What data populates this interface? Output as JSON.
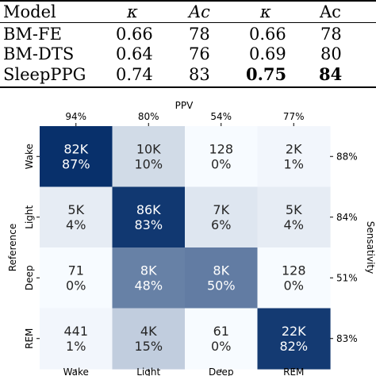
{
  "table": {
    "header": [
      "Model",
      "κ",
      "Ac",
      "κ",
      "Ac"
    ],
    "rows": [
      {
        "model": "BM-FE",
        "k1": "0.66",
        "ac1": "78",
        "k2": "0.66",
        "ac2": "78"
      },
      {
        "model": "BM-DTS",
        "k1": "0.64",
        "ac1": "76",
        "k2": "0.69",
        "ac2": "80"
      },
      {
        "model": "SleepPPG",
        "k1": "0.74",
        "ac1": "83",
        "k2": "0.75",
        "ac2": "84"
      }
    ]
  },
  "chart_data": {
    "type": "heatmap",
    "title": "",
    "top_axis_label": "PPV",
    "ylabel": "Reference",
    "right_axis_label": "Sensativity",
    "x_categories": [
      "Wake",
      "Light",
      "Deep",
      "REM"
    ],
    "y_categories": [
      "Wake",
      "Light",
      "Deep",
      "REM"
    ],
    "ppv": [
      "94%",
      "80%",
      "54%",
      "77%"
    ],
    "sensitivity": [
      "88%",
      "84%",
      "51%",
      "83%"
    ],
    "counts": [
      [
        "82K",
        "10K",
        "128",
        "2K"
      ],
      [
        "5K",
        "86K",
        "7K",
        "5K"
      ],
      [
        "71",
        "8K",
        "8K",
        "128"
      ],
      [
        "441",
        "4K",
        "61",
        "22K"
      ]
    ],
    "percents": [
      [
        "87%",
        "10%",
        "0%",
        "1%"
      ],
      [
        "4%",
        "83%",
        "6%",
        "4%"
      ],
      [
        "0%",
        "48%",
        "50%",
        "0%"
      ],
      [
        "1%",
        "15%",
        "0%",
        "82%"
      ]
    ],
    "values": [
      [
        87,
        10,
        0,
        1
      ],
      [
        4,
        83,
        6,
        4
      ],
      [
        0,
        48,
        50,
        0
      ],
      [
        1,
        15,
        0,
        82
      ]
    ],
    "colormap": {
      "low": "#f7fbff",
      "high": "#08306b"
    }
  }
}
